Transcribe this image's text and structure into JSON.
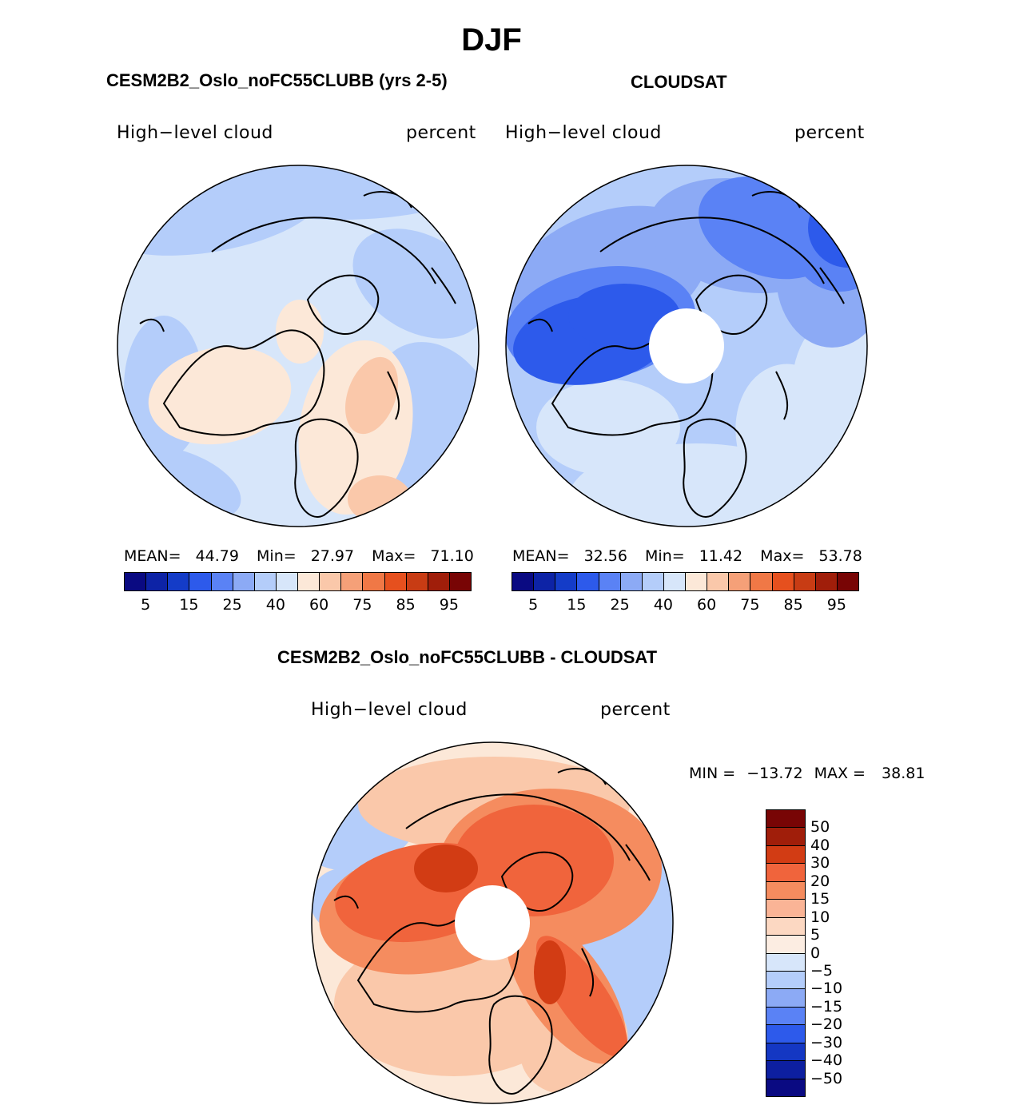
{
  "page": {
    "season": "DJF"
  },
  "panels": [
    {
      "title": "CESM2B2_Oslo_noFC55CLUBB (yrs 2-5)",
      "left_label": "High−level cloud",
      "right_label": "percent",
      "stats": {
        "mean_label": "MEAN=",
        "mean": "44.79",
        "min_label": "Min=",
        "min": "27.97",
        "max_label": "Max=",
        "max": "71.10"
      },
      "polar_hole": false
    },
    {
      "title": "CLOUDSAT",
      "left_label": "High−level cloud",
      "right_label": "percent",
      "stats": {
        "mean_label": "MEAN=",
        "mean": "32.56",
        "min_label": "Min=",
        "min": "11.42",
        "max_label": "Max=",
        "max": "53.78"
      },
      "polar_hole": true
    },
    {
      "title": "CESM2B2_Oslo_noFC55CLUBB - CLOUDSAT",
      "left_label": "High−level cloud",
      "right_label": "percent",
      "minmax": {
        "min_label": "MIN =",
        "min": "−13.72",
        "max_label": "MAX =",
        "max": "38.81"
      },
      "polar_hole": true
    }
  ],
  "chart_data": [
    {
      "type": "heatmap",
      "title": "CESM2B2_Oslo_noFC55CLUBB (yrs 2-5)",
      "variable": "High-level cloud",
      "units": "percent",
      "mean": 44.79,
      "min": 27.97,
      "max": 71.1,
      "colorbar_ticks": [
        "5",
        "15",
        "25",
        "40",
        "60",
        "75",
        "85",
        "95"
      ],
      "colorbar_colors": [
        "#0a0a82",
        "#0d23a6",
        "#143cc8",
        "#2d5aeb",
        "#5a82f5",
        "#8caaf5",
        "#b4cdfa",
        "#d7e6fa",
        "#fce8d8",
        "#fac8aa",
        "#f5a078",
        "#f07846",
        "#e6501e",
        "#c83c14",
        "#a01e0a",
        "#780505"
      ]
    },
    {
      "type": "heatmap",
      "title": "CLOUDSAT",
      "variable": "High-level cloud",
      "units": "percent",
      "mean": 32.56,
      "min": 11.42,
      "max": 53.78,
      "colorbar_ticks": [
        "5",
        "15",
        "25",
        "40",
        "60",
        "75",
        "85",
        "95"
      ],
      "colorbar_colors": [
        "#0a0a82",
        "#0d23a6",
        "#143cc8",
        "#2d5aeb",
        "#5a82f5",
        "#8caaf5",
        "#b4cdfa",
        "#d7e6fa",
        "#fce8d8",
        "#fac8aa",
        "#f5a078",
        "#f07846",
        "#e6501e",
        "#c83c14",
        "#a01e0a",
        "#780505"
      ]
    },
    {
      "type": "heatmap",
      "title": "CESM2B2_Oslo_noFC55CLUBB - CLOUDSAT",
      "variable": "High-level cloud",
      "units": "percent",
      "min": -13.72,
      "max": 38.81,
      "colorbar_ticks": [
        "50",
        "40",
        "30",
        "20",
        "15",
        "10",
        "5",
        "0",
        "−5",
        "−10",
        "−15",
        "−20",
        "−30",
        "−40",
        "−50"
      ],
      "colorbar_colors": [
        "#780505",
        "#a01e0a",
        "#d23c14",
        "#f0643c",
        "#f58c5f",
        "#fab496",
        "#fcd8c2",
        "#fcede2",
        "#d7e6fa",
        "#b4cdfa",
        "#8caaf5",
        "#5a82f5",
        "#2d5aeb",
        "#1437c3",
        "#0d1fa0",
        "#0a0a82"
      ]
    }
  ]
}
